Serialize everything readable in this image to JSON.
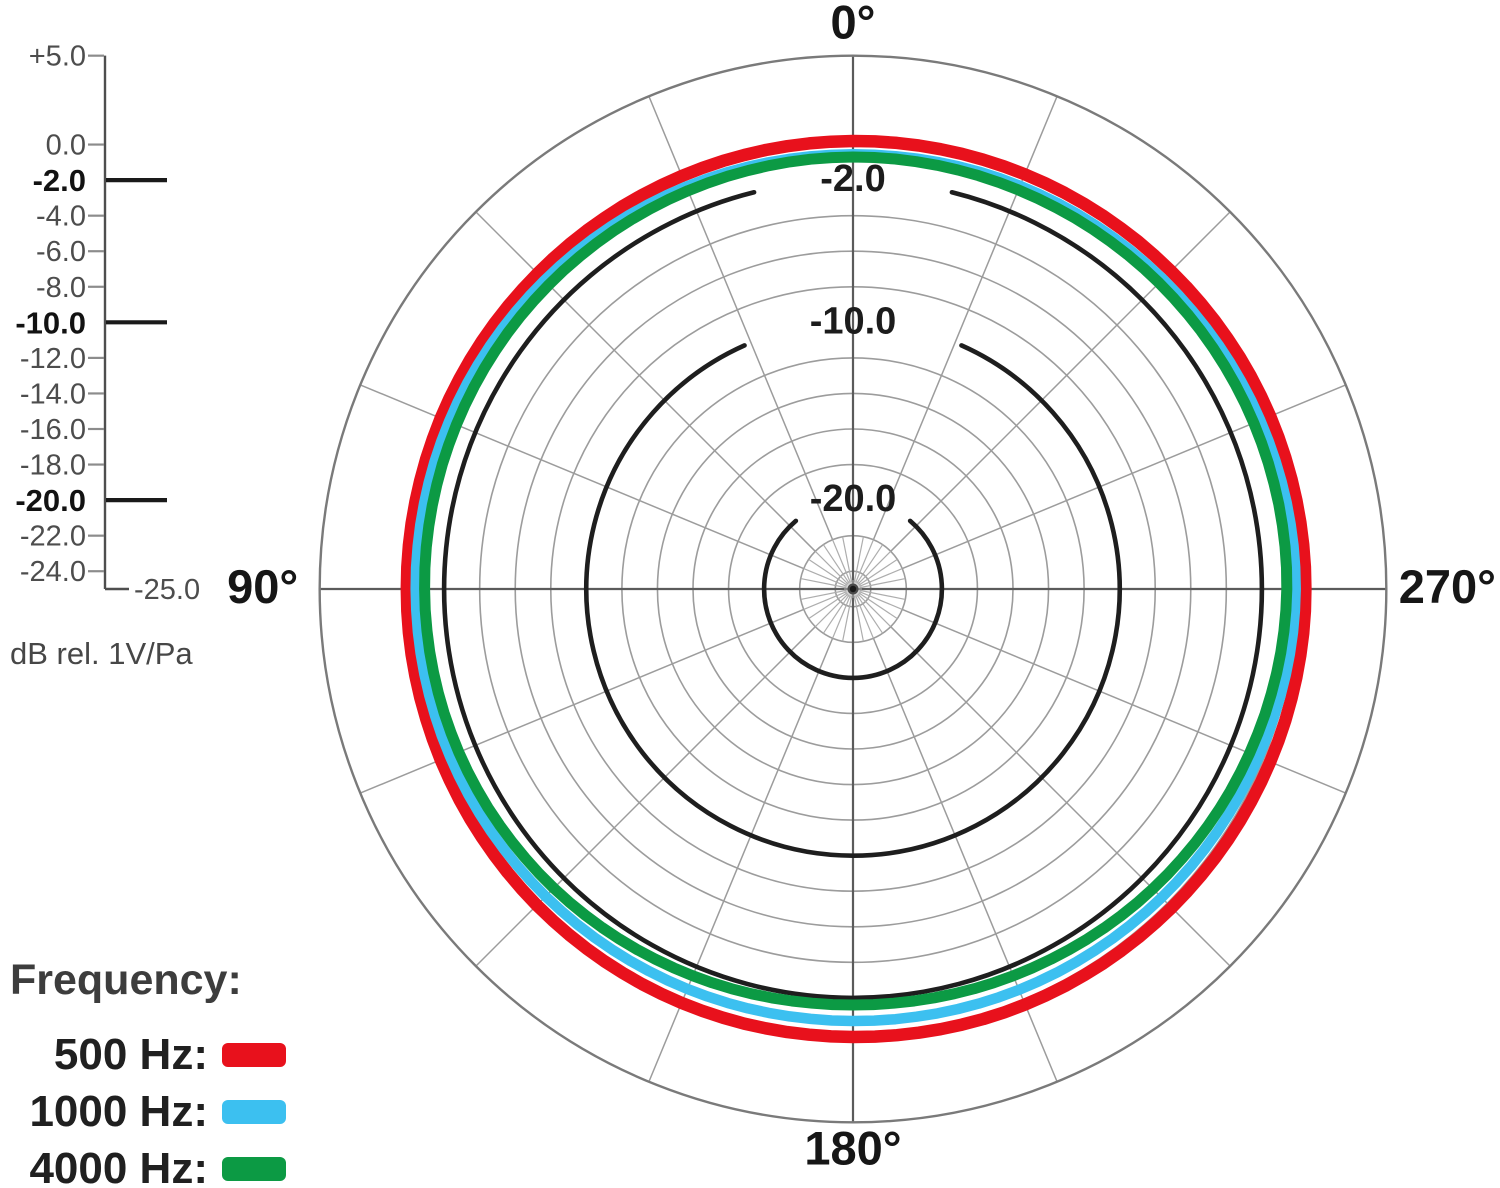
{
  "chart_data": {
    "type": "polar",
    "description": "Microphone polar pattern, omnidirectional response at three frequencies",
    "center_db": -25,
    "outer_db": 5,
    "angle_labels": [
      {
        "angle_deg": 0,
        "label": "0°"
      },
      {
        "angle_deg": 90,
        "label": "90°"
      },
      {
        "angle_deg": 180,
        "label": "180°"
      },
      {
        "angle_deg": 270,
        "label": "270°"
      }
    ],
    "radial_axis": {
      "unit_label": "dB rel. 1V/Pa",
      "max_db": 5,
      "min_db": -25,
      "end_label": "-25.0",
      "ticks": [
        {
          "db": 5,
          "label": "+5.0",
          "bold": false
        },
        {
          "db": 0,
          "label": "0.0",
          "bold": false
        },
        {
          "db": -2,
          "label": "-2.0",
          "bold": true
        },
        {
          "db": -4,
          "label": "-4.0",
          "bold": false
        },
        {
          "db": -6,
          "label": "-6.0",
          "bold": false
        },
        {
          "db": -8,
          "label": "-8.0",
          "bold": false
        },
        {
          "db": -10,
          "label": "-10.0",
          "bold": true
        },
        {
          "db": -12,
          "label": "-12.0",
          "bold": false
        },
        {
          "db": -14,
          "label": "-14.0",
          "bold": false
        },
        {
          "db": -16,
          "label": "-16.0",
          "bold": false
        },
        {
          "db": -18,
          "label": "-18.0",
          "bold": false
        },
        {
          "db": -20,
          "label": "-20.0",
          "bold": true
        },
        {
          "db": -22,
          "label": "-22.0",
          "bold": false
        },
        {
          "db": -24,
          "label": "-24.0",
          "bold": false
        }
      ],
      "grid_circles_db": [
        0,
        -4,
        -6,
        -8,
        -12,
        -14,
        -16,
        -18,
        -22,
        -24
      ],
      "labeled_circles": [
        {
          "db": -2,
          "label": "-2.0",
          "gap_half_deg": 14
        },
        {
          "db": -10,
          "label": "-10.0",
          "gap_half_deg": 24
        },
        {
          "db": -20,
          "label": "-20.0",
          "gap_half_deg": 40
        }
      ]
    },
    "grid": {
      "major_spoke_step_deg": 22.5,
      "fine_spoke_step_deg": 11.25,
      "fine_spoke_outer_db": -22
    },
    "series": [
      {
        "name": "500 Hz",
        "color": "#e8111c",
        "stroke_width": 12.5,
        "angles_deg": [
          0,
          22.5,
          45,
          67.5,
          90,
          112.5,
          135,
          157.5,
          180,
          202.5,
          225,
          247.5,
          270,
          292.5,
          315,
          337.5
        ],
        "values_db": [
          0.2,
          0.15,
          0.1,
          0.1,
          0.1,
          0.1,
          0.15,
          0.2,
          0.2,
          0.3,
          0.35,
          0.4,
          0.45,
          0.4,
          0.3,
          0.25
        ]
      },
      {
        "name": "1000 Hz",
        "color": "#3cc0f0",
        "stroke_width": 10.5,
        "angles_deg": [
          0,
          22.5,
          45,
          67.5,
          90,
          112.5,
          135,
          157.5,
          180,
          202.5,
          225,
          247.5,
          270,
          292.5,
          315,
          337.5
        ],
        "values_db": [
          -0.55,
          -0.5,
          -0.45,
          -0.4,
          -0.4,
          -0.45,
          -0.55,
          -0.65,
          -0.7,
          -0.6,
          -0.45,
          -0.3,
          -0.1,
          -0.2,
          -0.35,
          -0.45
        ]
      },
      {
        "name": "4000 Hz",
        "color": "#0c9a44",
        "stroke_width": 11,
        "angles_deg": [
          0,
          22.5,
          45,
          67.5,
          90,
          112.5,
          135,
          157.5,
          180,
          202.5,
          225,
          247.5,
          270,
          292.5,
          315,
          337.5
        ],
        "values_db": [
          -0.7,
          -0.75,
          -0.8,
          -0.85,
          -0.9,
          -1.0,
          -1.2,
          -1.45,
          -1.6,
          -1.45,
          -1.15,
          -0.85,
          -0.6,
          -0.6,
          -0.65,
          -0.7
        ]
      }
    ],
    "legend": {
      "title": "Frequency:",
      "items": [
        {
          "label": "500 Hz:",
          "color": "#e8111c"
        },
        {
          "label": "1000 Hz:",
          "color": "#3cc0f0"
        },
        {
          "label": "4000 Hz:",
          "color": "#0c9a44"
        }
      ]
    }
  }
}
